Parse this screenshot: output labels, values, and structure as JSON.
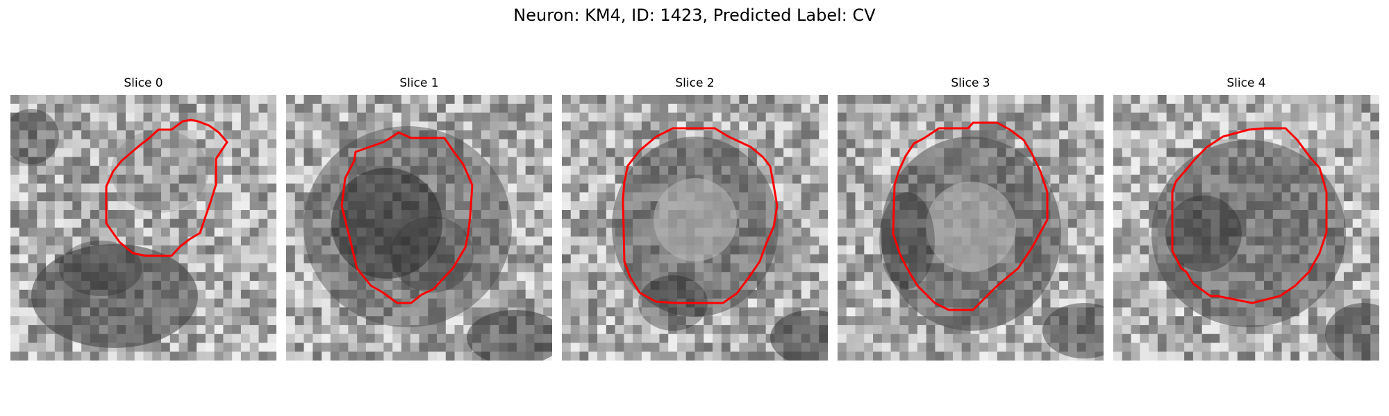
{
  "figure": {
    "title": "Neuron: KM4, ID: 1423, Predicted Label: CV"
  },
  "panels": [
    {
      "title": "Slice 0"
    },
    {
      "title": "Slice 1"
    },
    {
      "title": "Slice 2"
    },
    {
      "title": "Slice 3"
    },
    {
      "title": "Slice 4"
    }
  ],
  "colors": {
    "contour": "#ff0000",
    "background": "#ffffff",
    "colormap": "grayscale"
  }
}
